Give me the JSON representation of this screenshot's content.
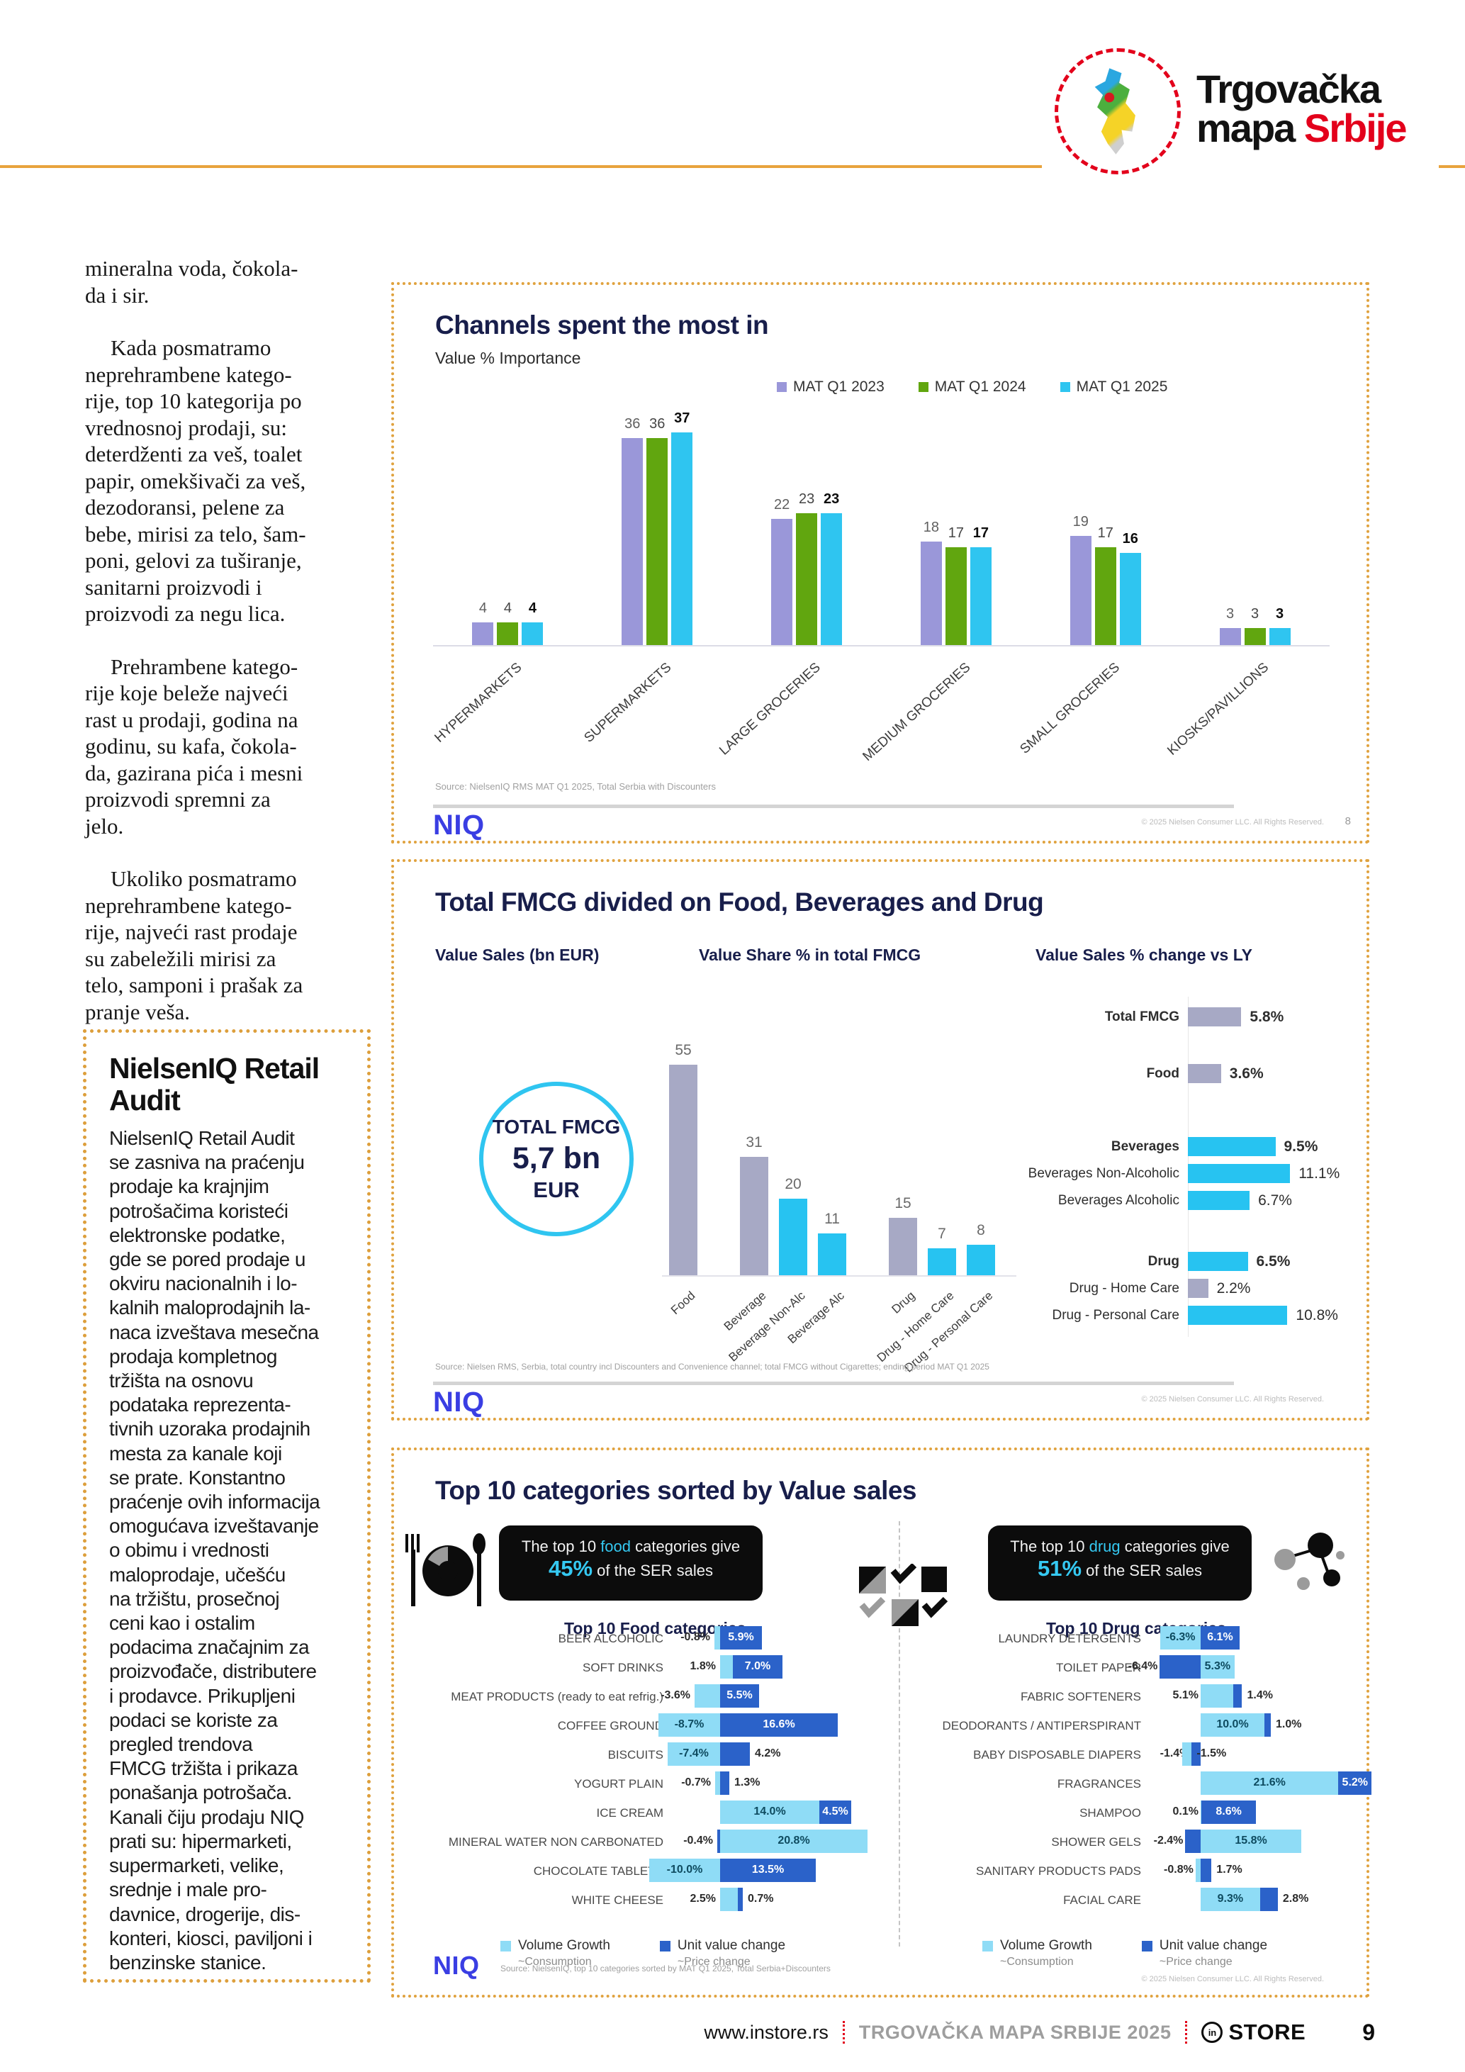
{
  "logo": {
    "line1": "Trgovačka",
    "line2_black": "mapa ",
    "line2_red": "Srbije"
  },
  "article": {
    "paragraphs": [
      "mineralna voda, čokola-\nda i sir.",
      "Kada posmatramo\nneprehrambene katego-\nrije, top 10 kategorija po\nvrednosnoj prodaji, su:\ndeterdženti za veš, toalet\npapir, omekšivači za veš,\ndezodoransi, pelene za\nbebe, mirisi za telo, šam-\nponi, gelovi za tuširanje,\nsanitarni proizvodi i\nproizvodi za negu lica.",
      "Prehrambene katego-\nrije koje beleže najveći\nrast u prodaji, godina na\ngodinu, su kafa, čokola-\nda, gazirana pića i mesni\nproizvodi spremni za\njelo.",
      "Ukoliko posmatramo\nneprehrambene katego-\nrije, najveći rast prodaje\nsu zabeležili mirisi za\ntelo, samponi i prašak za\npranje veša."
    ]
  },
  "sidebox": {
    "title": "NielsenIQ Retail\nAudit",
    "body": "NielsenIQ Retail Audit\nse zasniva na praćenju\nprodaje ka krajnjim\npotrošačima koristeći\nelektronske podatke,\ngde se pored prodaje u\nokviru nacionalnih i lo-\nkalnih maloprodajnih la-\nnaca izveštava mesečna\nprodaja kompletnog\ntržišta na osnovu\npodataka reprezenta-\ntivnih uzoraka prodajnih\nmesta za kanale koji\nse prate. Konstantno\npraćenje ovih informacija\nomogućava izveštavanje\no obimu i vrednosti\nmaloprodaje, učešću\nna tržištu, prosečnoj\nceni kao i ostalim\npodacima značajnim za\nproizvođače, distributere\ni prodavce. Prikupljeni\npodaci se koriste za\npregled trendova\nFMCG tržišta i prikaza\nponašanja potrošača.\nKanali čiju prodaju NIQ\nprati su: hipermarketi,\nsupermarketi, velike,\nsrednje i male pro-\ndavnice, drogerije, dis-\nkonteri, kiosci, paviljoni i\nbenzinske stanice."
  },
  "chart_data": [
    {
      "id": "channels",
      "type": "bar",
      "title": "Channels spent the most in",
      "subtitle": "Value % Importance",
      "legend": [
        "MAT Q1 2023",
        "MAT Q1 2024",
        "MAT Q1 2025"
      ],
      "legend_colors": [
        "#9a97d9",
        "#61a60f",
        "#2fc5f0"
      ],
      "categories": [
        "HYPERMARKETS",
        "SUPERMARKETS",
        "LARGE GROCERIES",
        "MEDIUM GROCERIES",
        "SMALL GROCERIES",
        "KIOSKS/PAVILLIONS"
      ],
      "series": [
        {
          "name": "MAT Q1 2023",
          "values": [
            4,
            36,
            22,
            18,
            19,
            3
          ]
        },
        {
          "name": "MAT Q1 2024",
          "values": [
            4,
            36,
            23,
            17,
            17,
            3
          ]
        },
        {
          "name": "MAT Q1 2025",
          "values": [
            4,
            37,
            23,
            17,
            16,
            3
          ]
        }
      ],
      "ylim": [
        0,
        40
      ],
      "grid": false,
      "legend_position": "top",
      "source": "Source: NielsenIQ RMS MAT Q1 2025, Total Serbia with Discounters",
      "brand": "NIQ",
      "copyright": "© 2025 Nielsen Consumer LLC. All Rights Reserved.",
      "slide_number": "8"
    },
    {
      "id": "fmcg",
      "type": "bar",
      "title": "Total FMCG divided on Food, Beverages and Drug",
      "col_headers": [
        "Value Sales (bn EUR)",
        "Value Share % in total FMCG",
        "Value Sales % change vs LY"
      ],
      "total_circle": {
        "line1": "TOTAL FMCG",
        "line2": "5,7 bn",
        "line3": "EUR"
      },
      "share_bars": {
        "type": "bar",
        "title": "Value Share % in total FMCG",
        "categories": [
          "Food",
          "Beverage",
          "Beverage Non-Alc",
          "Beverage Alc",
          "Drug",
          "Drug - Home Care",
          "Drug - Personal Care"
        ],
        "values": [
          55,
          31,
          20,
          11,
          15,
          7,
          8
        ],
        "colors": [
          "gray",
          "gray",
          "cyan",
          "cyan",
          "gray",
          "cyan",
          "cyan"
        ]
      },
      "change_bars": {
        "type": "bar",
        "title": "Value Sales % change vs LY",
        "rows": [
          {
            "label": "Total FMCG",
            "value": 5.8,
            "display": "5.8%",
            "color": "gray",
            "bold": true
          },
          {
            "label": "Food",
            "value": 3.6,
            "display": "3.6%",
            "color": "gray",
            "bold": true
          },
          {
            "label": "Beverages",
            "value": 9.5,
            "display": "9.5%",
            "color": "cyan",
            "bold": true
          },
          {
            "label": "Beverages Non-Alcoholic",
            "value": 11.1,
            "display": "11.1%",
            "color": "cyan",
            "bold": false
          },
          {
            "label": "Beverages Alcoholic",
            "value": 6.7,
            "display": "6.7%",
            "color": "cyan",
            "bold": false
          },
          {
            "label": "Drug",
            "value": 6.5,
            "display": "6.5%",
            "color": "cyan",
            "bold": true
          },
          {
            "label": "Drug - Home Care",
            "value": 2.2,
            "display": "2.2%",
            "color": "gray",
            "bold": false
          },
          {
            "label": "Drug - Personal Care",
            "value": 10.8,
            "display": "10.8%",
            "color": "cyan",
            "bold": false
          }
        ]
      },
      "bar_colors": {
        "gray": "#a7a9c5",
        "cyan": "#27c3f1"
      },
      "source": "Source: Nielsen RMS, Serbia, total country incl Discounters and Convenience channel; total FMCG without Cigarettes; ending period MAT Q1 2025",
      "brand": "NIQ",
      "copyright": "© 2025 Nielsen Consumer LLC. All Rights Reserved."
    },
    {
      "id": "top10",
      "type": "diverging-bar",
      "title": "Top 10 categories sorted by Value sales",
      "legend": {
        "volume": {
          "title": "Volume Growth",
          "sub": "~Consumption"
        },
        "unit": {
          "title": "Unit value change",
          "sub": "~Price change"
        }
      },
      "food": {
        "banner": {
          "lead": "The top 10 ",
          "keyword": "food",
          "tail": " categories give",
          "pct": "45%",
          "pct_tail": " of the SER sales"
        },
        "header": "Top 10 Food categories",
        "rows": [
          {
            "label": "BEER ALCOHOLIC",
            "segments": [
              {
                "kind": "volume",
                "value": -0.8,
                "label": "-0.8%",
                "pos": "left"
              },
              {
                "kind": "unit",
                "value": 5.9,
                "label": "5.9%",
                "pos": "in"
              }
            ]
          },
          {
            "label": "SOFT DRINKS",
            "segments": [
              {
                "kind": "volume",
                "value": 1.8,
                "label": "1.8%",
                "pos": "left"
              },
              {
                "kind": "unit",
                "value": 7.0,
                "label": "7.0%",
                "pos": "in"
              }
            ]
          },
          {
            "label": "MEAT PRODUCTS (ready to eat refrig.)",
            "segments": [
              {
                "kind": "volume",
                "value": -3.6,
                "label": "-3.6%",
                "pos": "left"
              },
              {
                "kind": "unit",
                "value": 5.5,
                "label": "5.5%",
                "pos": "in"
              }
            ]
          },
          {
            "label": "COFFEE GROUND",
            "segments": [
              {
                "kind": "volume",
                "value": -8.7,
                "label": "-8.7%",
                "pos": "in"
              },
              {
                "kind": "unit",
                "value": 16.6,
                "label": "16.6%",
                "pos": "in"
              }
            ]
          },
          {
            "label": "BISCUITS",
            "segments": [
              {
                "kind": "volume",
                "value": -7.4,
                "label": "-7.4%",
                "pos": "in"
              },
              {
                "kind": "unit",
                "value": 4.2,
                "label": "4.2%",
                "pos": "right"
              }
            ]
          },
          {
            "label": "YOGURT PLAIN",
            "segments": [
              {
                "kind": "volume",
                "value": -0.7,
                "label": "-0.7%",
                "pos": "left"
              },
              {
                "kind": "unit",
                "value": 1.3,
                "label": "1.3%",
                "pos": "right"
              }
            ]
          },
          {
            "label": "ICE CREAM",
            "segments": [
              {
                "kind": "volume",
                "value": 14.0,
                "label": "14.0%",
                "pos": "in"
              },
              {
                "kind": "unit",
                "value": 4.5,
                "label": "4.5%",
                "pos": "in"
              }
            ]
          },
          {
            "label": "MINERAL WATER NON CARBONATED",
            "segments": [
              {
                "kind": "unit",
                "value": -0.4,
                "label": "-0.4%",
                "pos": "left"
              },
              {
                "kind": "volume",
                "value": 20.8,
                "label": "20.8%",
                "pos": "in"
              }
            ]
          },
          {
            "label": "CHOCOLATE TABLETS",
            "segments": [
              {
                "kind": "volume",
                "value": -10.0,
                "label": "-10.0%",
                "pos": "in"
              },
              {
                "kind": "unit",
                "value": 13.5,
                "label": "13.5%",
                "pos": "in"
              }
            ]
          },
          {
            "label": "WHITE CHEESE",
            "segments": [
              {
                "kind": "volume",
                "value": 2.5,
                "label": "2.5%",
                "pos": "left"
              },
              {
                "kind": "unit",
                "value": 0.7,
                "label": "0.7%",
                "pos": "right"
              }
            ]
          }
        ]
      },
      "drug": {
        "banner": {
          "lead": "The top 10 ",
          "keyword": "drug",
          "tail": " categories give",
          "pct": "51%",
          "pct_tail": " of the SER sales"
        },
        "header": "Top 10 Drug categories",
        "rows": [
          {
            "label": "LAUNDRY DETERGENTS",
            "segments": [
              {
                "kind": "volume",
                "value": -6.3,
                "label": "-6.3%",
                "pos": "in"
              },
              {
                "kind": "unit",
                "value": 6.1,
                "label": "6.1%",
                "pos": "in"
              }
            ]
          },
          {
            "label": "TOILET PAPER",
            "segments": [
              {
                "kind": "unit",
                "value": -6.4,
                "label": "-6.4%",
                "pos": "left"
              },
              {
                "kind": "volume",
                "value": 5.3,
                "label": "5.3%",
                "pos": "in"
              }
            ]
          },
          {
            "label": "FABRIC SOFTENERS",
            "segments": [
              {
                "kind": "volume",
                "value": 5.1,
                "label": "5.1%",
                "pos": "left"
              },
              {
                "kind": "unit",
                "value": 1.4,
                "label": "1.4%",
                "pos": "right"
              }
            ]
          },
          {
            "label": "DEODORANTS / ANTIPERSPIRANT",
            "segments": [
              {
                "kind": "volume",
                "value": 10.0,
                "label": "10.0%",
                "pos": "in"
              },
              {
                "kind": "unit",
                "value": 1.0,
                "label": "1.0%",
                "pos": "right"
              }
            ]
          },
          {
            "label": "BABY DISPOSABLE DIAPERS",
            "segments": [
              {
                "kind": "unit",
                "value": -1.4,
                "label": "-1.4%",
                "pos": "left"
              },
              {
                "kind": "volume",
                "value": -1.5,
                "label": "-1.5%",
                "pos": "right"
              }
            ]
          },
          {
            "label": "FRAGRANCES",
            "segments": [
              {
                "kind": "volume",
                "value": 21.6,
                "label": "21.6%",
                "pos": "in"
              },
              {
                "kind": "unit",
                "value": 5.2,
                "label": "5.2%",
                "pos": "in"
              }
            ]
          },
          {
            "label": "SHAMPOO",
            "segments": [
              {
                "kind": "volume",
                "value": 0.1,
                "label": "0.1%",
                "pos": "left"
              },
              {
                "kind": "unit",
                "value": 8.6,
                "label": "8.6%",
                "pos": "in"
              }
            ]
          },
          {
            "label": "SHOWER GELS",
            "segments": [
              {
                "kind": "unit",
                "value": -2.4,
                "label": "-2.4%",
                "pos": "left"
              },
              {
                "kind": "volume",
                "value": 15.8,
                "label": "15.8%",
                "pos": "in"
              }
            ]
          },
          {
            "label": "SANITARY PRODUCTS PADS",
            "segments": [
              {
                "kind": "volume",
                "value": -0.8,
                "label": "-0.8%",
                "pos": "left"
              },
              {
                "kind": "unit",
                "value": 1.7,
                "label": "1.7%",
                "pos": "right"
              }
            ]
          },
          {
            "label": "FACIAL CARE",
            "segments": [
              {
                "kind": "volume",
                "value": 9.3,
                "label": "9.3%",
                "pos": "in"
              },
              {
                "kind": "unit",
                "value": 2.8,
                "label": "2.8%",
                "pos": "right"
              }
            ]
          }
        ]
      },
      "colors": {
        "volume": "#8fdcf6",
        "unit": "#2b62c9"
      },
      "source": "Source: NielsenIQ, top 10 categories sorted by MAT Q1 2025, Total Serbia+Discounters",
      "brand": "NIQ",
      "copyright": "© 2025 Nielsen Consumer LLC. All Rights Reserved."
    }
  ],
  "footer": {
    "url": "www.instore.rs",
    "publication": "TRGOVAČKA MAPA SRBIJE 2025",
    "brand_icon": "in",
    "brand": "STORE",
    "page_number": "9"
  }
}
